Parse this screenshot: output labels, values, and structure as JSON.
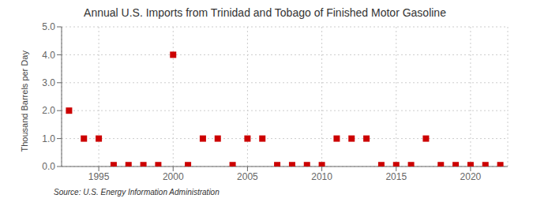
{
  "chart_data": {
    "type": "scatter",
    "title": "Annual U.S. Imports from Trinidad and Tobago of Finished Motor Gasoline",
    "ylabel": "Thousand Barrels per Day",
    "annotations": [
      "Source: U.S. Energy Information Administration"
    ],
    "x": [
      1993,
      1994,
      1995,
      1996,
      1997,
      1998,
      1999,
      2000,
      2001,
      2002,
      2003,
      2004,
      2005,
      2006,
      2007,
      2008,
      2009,
      2010,
      2011,
      2012,
      2013,
      2014,
      2015,
      2016,
      2017,
      2018,
      2019,
      2020,
      2021,
      2022
    ],
    "values": [
      2.0,
      1.0,
      1.0,
      0.05,
      0.05,
      0.05,
      0.05,
      4.0,
      0.05,
      1.0,
      1.0,
      0.05,
      1.0,
      1.0,
      0.05,
      0.05,
      0.05,
      0.05,
      1.0,
      1.0,
      1.0,
      0.05,
      0.05,
      0.05,
      1.0,
      0.05,
      0.05,
      0.05,
      0.05,
      0.05
    ],
    "color": "#cc0000",
    "marker": "square",
    "xlim": [
      1992.5,
      2022.5
    ],
    "xticks": [
      1995,
      2000,
      2005,
      2010,
      2015,
      2020
    ],
    "ylim": [
      0.0,
      5.0
    ],
    "yticks": [
      {
        "value": 0,
        "label": "0.0"
      },
      {
        "value": 1,
        "label": "1.0"
      },
      {
        "value": 2,
        "label": "2.0"
      },
      {
        "value": 3,
        "label": "3.0"
      },
      {
        "value": 4,
        "label": "4.0"
      },
      {
        "value": 5,
        "label": "5.0"
      }
    ],
    "grid": true
  }
}
